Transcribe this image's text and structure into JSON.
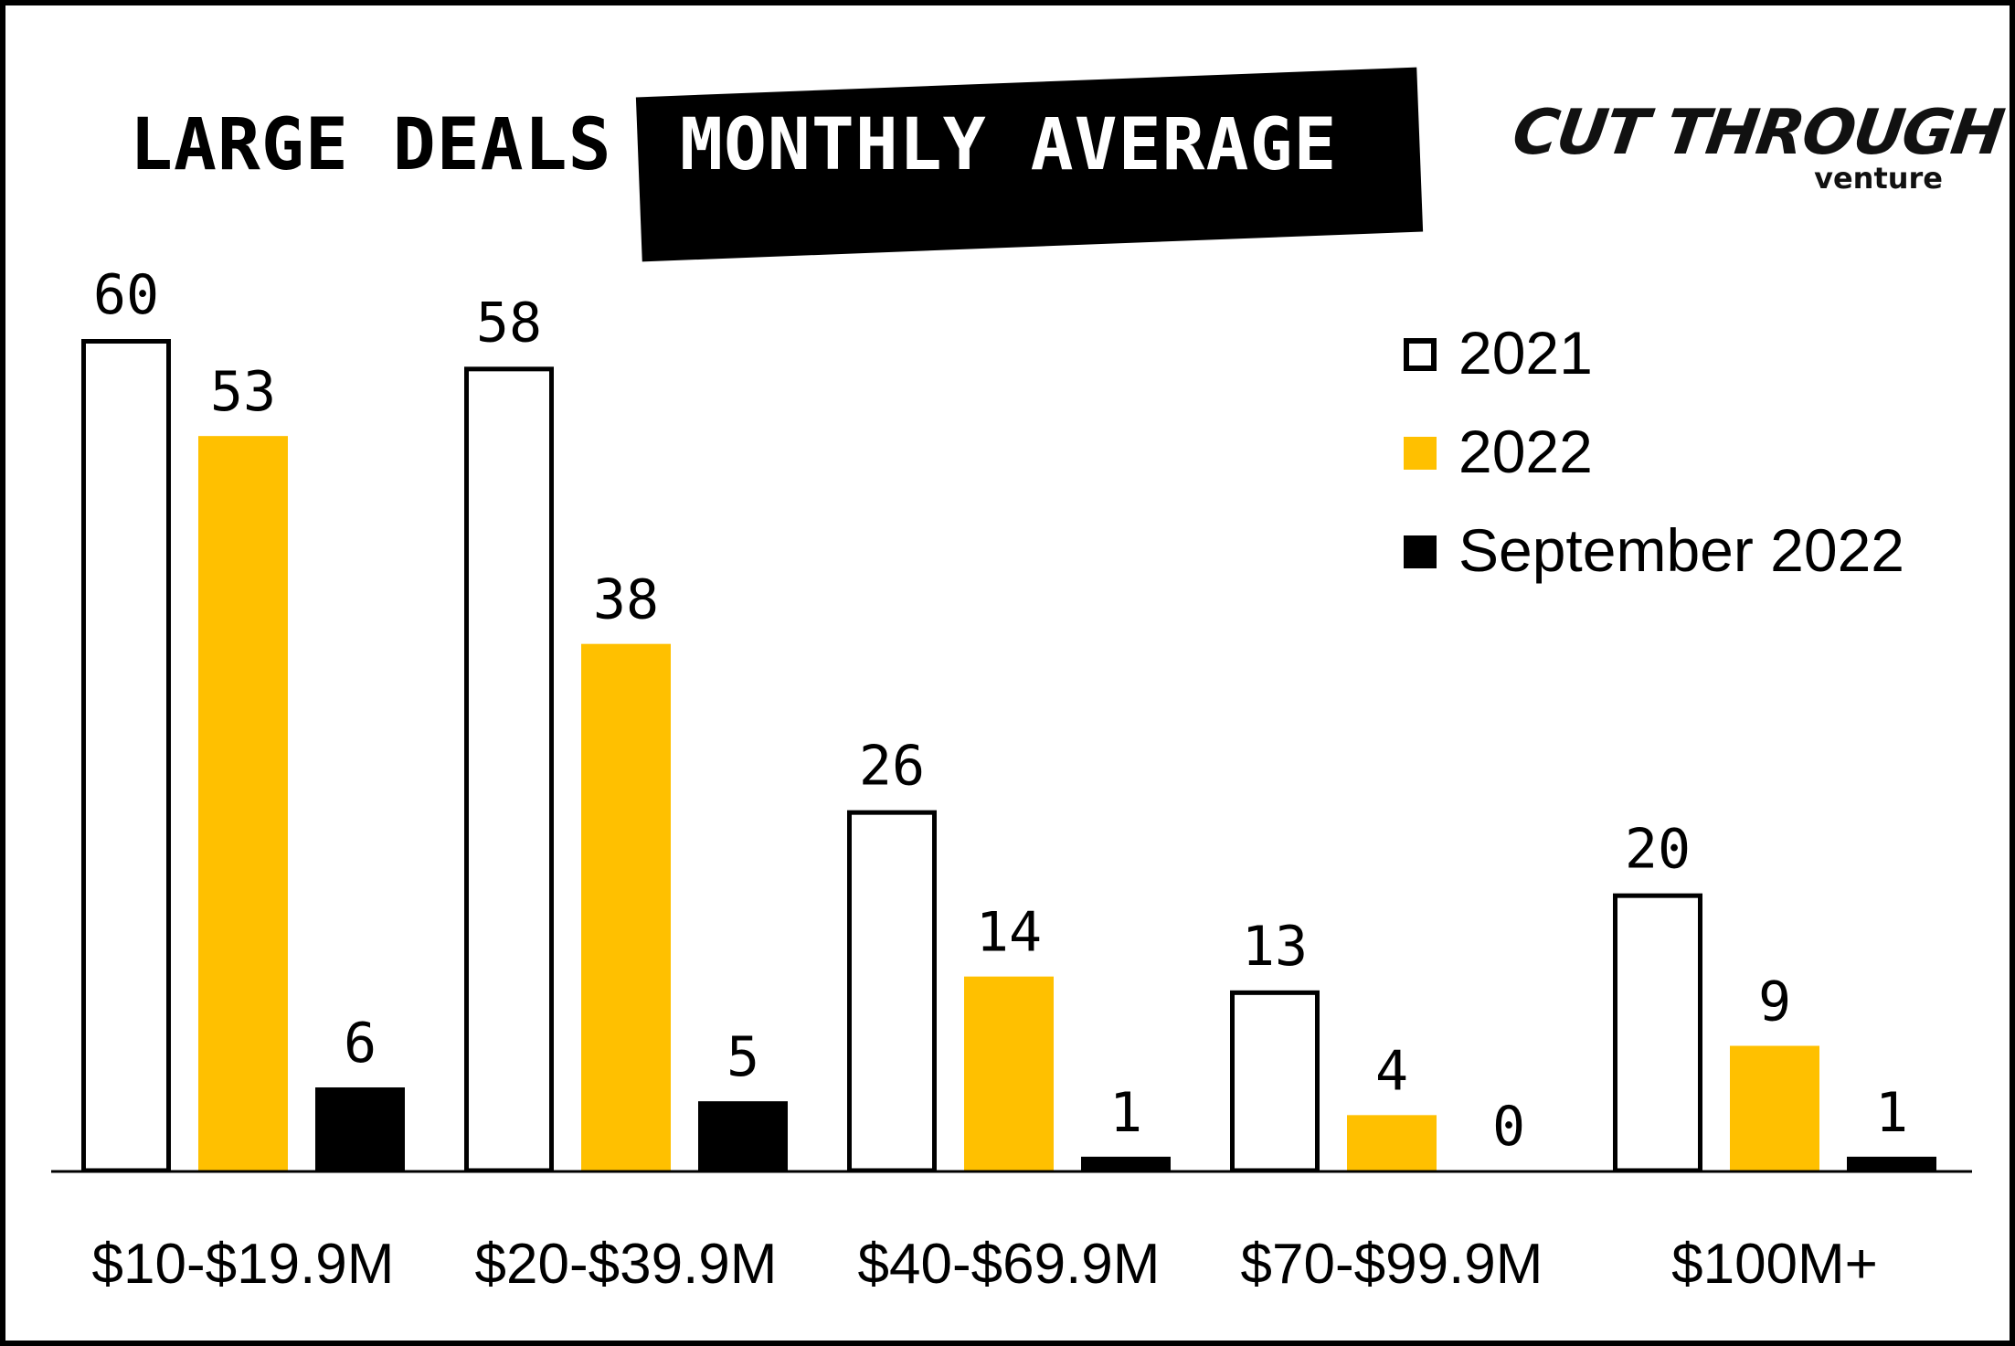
{
  "title": {
    "left": "LARGE DEALS",
    "right": "MONTHLY AVERAGE"
  },
  "logo": {
    "main": "CUT THROUGH",
    "sub": "venture"
  },
  "colors": {
    "s2021_fill": "#ffffff",
    "s2021_stroke": "#000000",
    "s2022": "#ffc000",
    "sep2022": "#000000"
  },
  "chart_data": {
    "type": "bar",
    "categories": [
      "$10-$19.9M",
      "$20-$39.9M",
      "$40-$69.9M",
      "$70-$99.9M",
      "$100M+"
    ],
    "series": [
      {
        "name": "2021",
        "values": [
          60,
          58,
          26,
          13,
          20
        ]
      },
      {
        "name": "2022",
        "values": [
          53,
          38,
          14,
          4,
          9
        ]
      },
      {
        "name": "September 2022",
        "values": [
          6,
          5,
          1,
          0,
          1
        ]
      }
    ],
    "ylim": [
      0,
      60
    ],
    "grid": false,
    "legend": "top-right"
  }
}
